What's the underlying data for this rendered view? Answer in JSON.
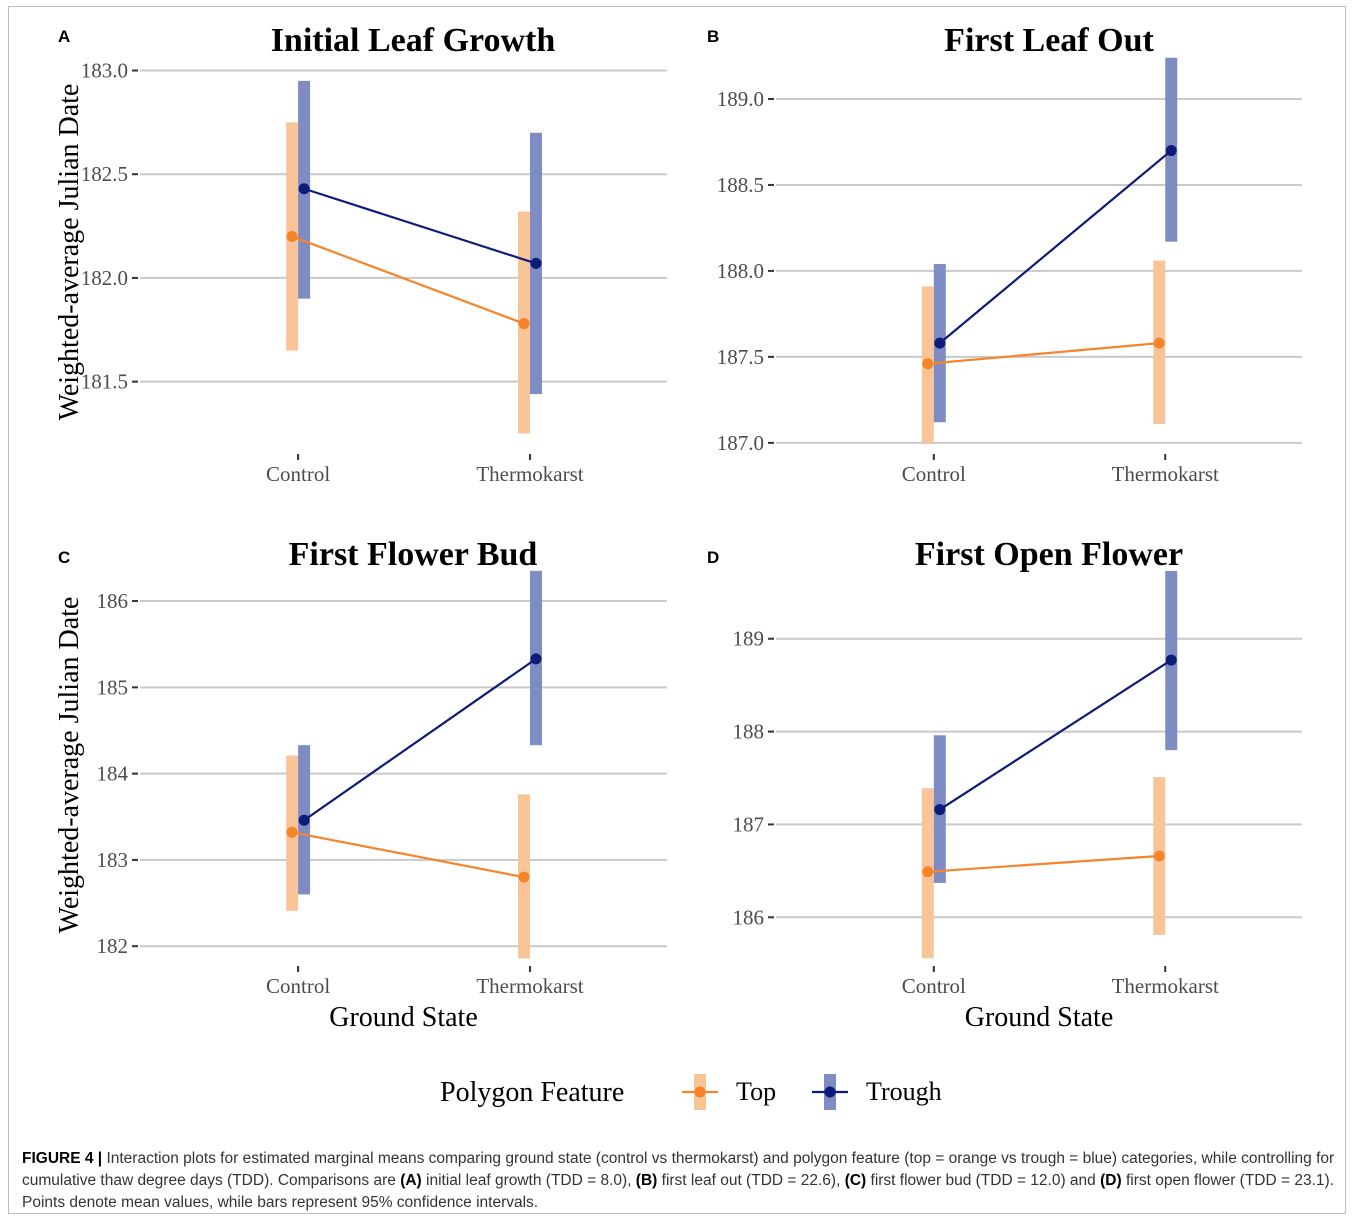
{
  "figure_label": "FIGURE 4 |",
  "caption_parts": [
    {
      "text": " Interaction plots for estimated marginal means comparing ground state (control vs thermokarst) and polygon feature (top = orange vs trough = blue) categories, while controlling for cumulative thaw degree days (TDD). Comparisons are ",
      "bold": false
    },
    {
      "text": "(A)",
      "bold": true
    },
    {
      "text": " initial leaf growth (TDD = 8.0), ",
      "bold": false
    },
    {
      "text": "(B)",
      "bold": true
    },
    {
      "text": " first leaf out (TDD = 22.6), ",
      "bold": false
    },
    {
      "text": "(C)",
      "bold": true
    },
    {
      "text": " first flower bud (TDD = 12.0) and ",
      "bold": false
    },
    {
      "text": "(D)",
      "bold": true
    },
    {
      "text": " first open flower (TDD = 23.1). Points denote mean values, while bars represent 95% confidence intervals.",
      "bold": false
    }
  ],
  "legend": {
    "title": "Polygon Feature",
    "items": [
      {
        "label": "Top",
        "color": "#f5842a",
        "bar_color": "#fac499"
      },
      {
        "label": "Trough",
        "color": "#0d1c78",
        "bar_color": "#7f8cc4"
      }
    ]
  },
  "chart_data": [
    {
      "type": "line",
      "panel": "A",
      "title": "Initial Leaf Growth",
      "ylabel": "Weighted-average Julian Date",
      "xlabel": "",
      "categories": [
        "Control",
        "Thermokarst"
      ],
      "ylim": [
        181.18,
        183.07
      ],
      "yticks": [
        181.5,
        182.0,
        182.5,
        183.0
      ],
      "ytick_labels": [
        "181.5",
        "182.0",
        "182.5",
        "183.0"
      ],
      "grid": "horizontal",
      "series": [
        {
          "name": "Top",
          "values": [
            182.2,
            181.78
          ],
          "lower": [
            181.65,
            181.25
          ],
          "upper": [
            182.75,
            182.32
          ]
        },
        {
          "name": "Trough",
          "values": [
            182.43,
            182.07
          ],
          "lower": [
            181.9,
            181.44
          ],
          "upper": [
            182.95,
            182.7
          ]
        }
      ]
    },
    {
      "type": "line",
      "panel": "B",
      "title": "First Leaf Out",
      "ylabel": "",
      "xlabel": "",
      "categories": [
        "Control",
        "Thermokarst"
      ],
      "ylim": [
        186.97,
        189.25
      ],
      "yticks": [
        187.0,
        187.5,
        188.0,
        188.5,
        189.0
      ],
      "ytick_labels": [
        "187.0",
        "187.5",
        "188.0",
        "188.5",
        "189.0"
      ],
      "grid": "horizontal",
      "series": [
        {
          "name": "Top",
          "values": [
            187.46,
            187.58
          ],
          "lower": [
            187.0,
            187.11
          ],
          "upper": [
            187.91,
            188.06
          ]
        },
        {
          "name": "Trough",
          "values": [
            187.58,
            188.7
          ],
          "lower": [
            187.12,
            188.17
          ],
          "upper": [
            188.04,
            189.24
          ]
        }
      ]
    },
    {
      "type": "line",
      "panel": "C",
      "title": "First Flower Bud",
      "ylabel": "Weighted-average Julian Date",
      "xlabel": "Ground State",
      "categories": [
        "Control",
        "Thermokarst"
      ],
      "ylim": [
        181.84,
        186.36
      ],
      "yticks": [
        182,
        183,
        184,
        185,
        186
      ],
      "ytick_labels": [
        "182",
        "183",
        "184",
        "185",
        "186"
      ],
      "grid": "horizontal",
      "series": [
        {
          "name": "Top",
          "values": [
            183.32,
            182.8
          ],
          "lower": [
            182.41,
            181.86
          ],
          "upper": [
            184.21,
            183.76
          ]
        },
        {
          "name": "Trough",
          "values": [
            183.46,
            185.33
          ],
          "lower": [
            182.6,
            184.33
          ],
          "upper": [
            184.33,
            186.35
          ]
        }
      ]
    },
    {
      "type": "line",
      "panel": "D",
      "title": "First Open Flower",
      "ylabel": "",
      "xlabel": "Ground State",
      "categories": [
        "Control",
        "Thermokarst"
      ],
      "ylim": [
        185.54,
        189.74
      ],
      "yticks": [
        186,
        187,
        188,
        189
      ],
      "ytick_labels": [
        "186",
        "187",
        "188",
        "189"
      ],
      "grid": "horizontal",
      "series": [
        {
          "name": "Top",
          "values": [
            186.49,
            186.66
          ],
          "lower": [
            185.56,
            185.81
          ],
          "upper": [
            187.39,
            187.51
          ]
        },
        {
          "name": "Trough",
          "values": [
            187.16,
            188.77
          ],
          "lower": [
            186.37,
            187.8
          ],
          "upper": [
            187.96,
            189.73
          ]
        }
      ]
    }
  ]
}
